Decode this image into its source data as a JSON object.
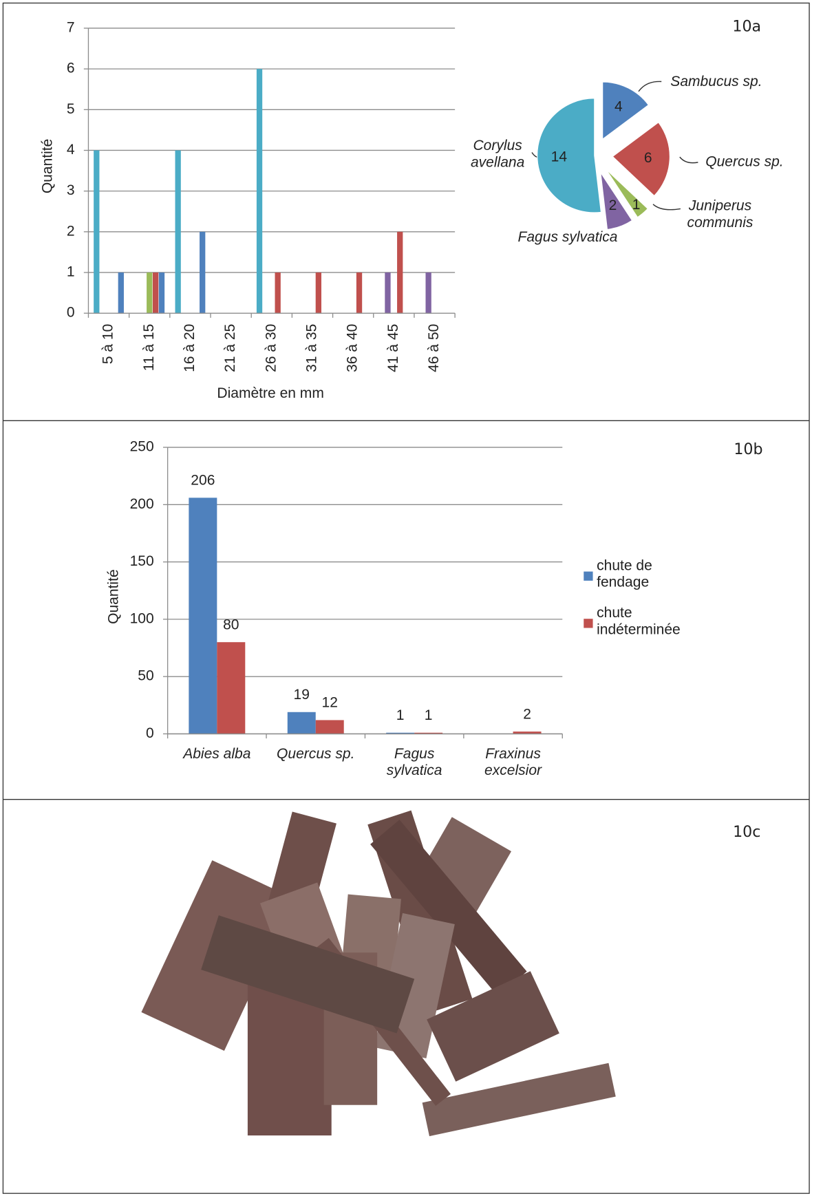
{
  "panel_labels": [
    "10a",
    "10b",
    "10c"
  ],
  "chart_data": [
    {
      "type": "bar",
      "y_label": "Quantité",
      "x_label": "Diamètre en mm",
      "categories": [
        "5 à 10",
        "11 à 15",
        "16 à 20",
        "21 à 25",
        "26 à 30",
        "31 à 35",
        "36 à 40",
        "41 à 45",
        "46 à 50"
      ],
      "series": [
        {
          "color": "#4bacc6",
          "values": [
            4,
            0,
            4,
            0,
            6,
            0,
            0,
            0,
            0
          ]
        },
        {
          "color": "#8064a2",
          "values": [
            0,
            0,
            0,
            0,
            0,
            0,
            0,
            1,
            1
          ]
        },
        {
          "color": "#9bbb59",
          "values": [
            0,
            1,
            0,
            0,
            0,
            0,
            0,
            0,
            0
          ]
        },
        {
          "color": "#c0504d",
          "values": [
            0,
            1,
            0,
            0,
            1,
            1,
            1,
            2,
            0
          ]
        },
        {
          "color": "#4f81bd",
          "values": [
            1,
            1,
            2,
            0,
            0,
            0,
            0,
            0,
            0
          ]
        }
      ],
      "ylim": [
        0,
        7
      ],
      "yticks": [
        0,
        1,
        2,
        3,
        4,
        5,
        6,
        7
      ],
      "grid": true
    },
    {
      "type": "pie",
      "categories": [
        "Sambucus sp.",
        "Quercus sp.",
        "Juniperus communis",
        "Fagus sylvatica",
        "Corylus avellana"
      ],
      "values": [
        4,
        6,
        1,
        2,
        14
      ],
      "colors": [
        "#4f81bd",
        "#c0504d",
        "#9bbb59",
        "#8064a2",
        "#4bacc6"
      ]
    },
    {
      "type": "bar",
      "y_label": "Quantité",
      "categories": [
        "Abies alba",
        "Quercus sp.",
        "Fagus sylvatica",
        "Fraxinus excelsior"
      ],
      "series": [
        {
          "name": "chute de fendage",
          "color": "#4f81bd",
          "values": [
            206,
            19,
            1,
            null
          ]
        },
        {
          "name": "chute indéterminée",
          "color": "#c0504d",
          "values": [
            80,
            12,
            1,
            2
          ]
        }
      ],
      "ylim": [
        0,
        250
      ],
      "yticks": [
        0,
        50,
        100,
        150,
        200,
        250
      ],
      "grid": true,
      "legend": "right"
    }
  ]
}
